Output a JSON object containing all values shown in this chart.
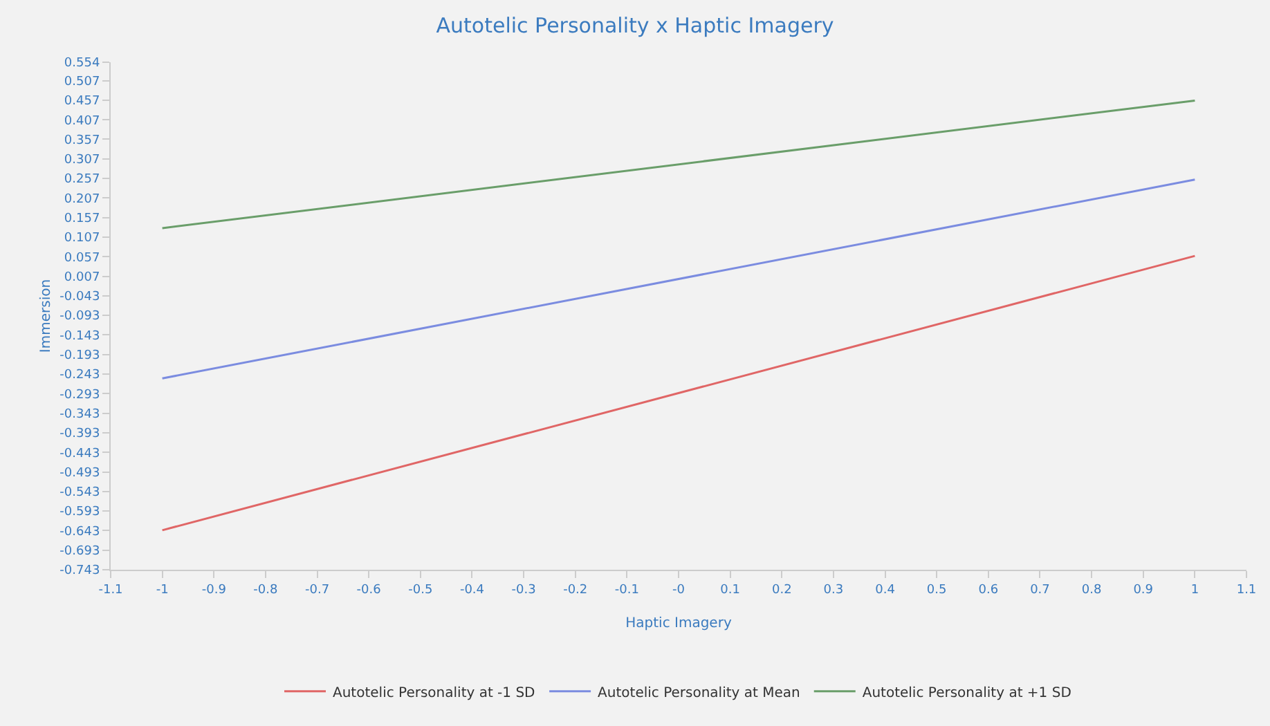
{
  "chart_data": {
    "type": "line",
    "title": "Autotelic Personality x Haptic Imagery",
    "xlabel": "Haptic Imagery",
    "ylabel": "Immersion",
    "x": [
      -1,
      1
    ],
    "series": [
      {
        "name": "Autotelic Personality at -1 SD",
        "color": "#e06666",
        "values": [
          -0.642,
          0.059
        ]
      },
      {
        "name": "Autotelic Personality at Mean",
        "color": "#7b8ce0",
        "values": [
          -0.254,
          0.254
        ]
      },
      {
        "name": "Autotelic Personality at +1 SD",
        "color": "#6a9e6a",
        "values": [
          0.13,
          0.456
        ]
      }
    ],
    "xlim": [
      -1.1,
      1.1
    ],
    "xticks": [
      -1.1,
      -1,
      -0.9,
      -0.8,
      -0.7,
      -0.6,
      -0.5,
      -0.4,
      -0.3,
      -0.2,
      -0.1,
      {
        "value": 0,
        "label": "-0"
      },
      0.1,
      0.2,
      0.3,
      0.4,
      0.5,
      0.6,
      0.7,
      0.8,
      0.9,
      1,
      1.1
    ],
    "ylim": [
      -0.743,
      0.554
    ],
    "yticks": [
      0.554,
      0.507,
      0.457,
      0.407,
      0.357,
      0.307,
      0.257,
      0.207,
      0.157,
      0.107,
      0.057,
      0.007,
      -0.043,
      -0.093,
      -0.143,
      -0.193,
      -0.243,
      -0.293,
      -0.343,
      -0.393,
      -0.443,
      -0.493,
      -0.543,
      -0.593,
      -0.643,
      -0.693,
      -0.743
    ],
    "grid": false,
    "legend": "bottom",
    "marker": "none",
    "line_style": "solid"
  }
}
